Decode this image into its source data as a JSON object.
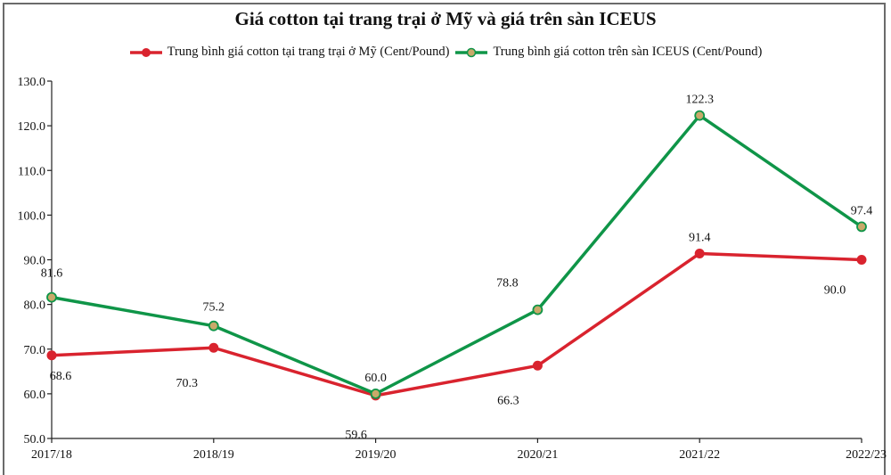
{
  "chart_data": {
    "type": "line",
    "title": "Giá cotton tại trang trại ở Mỹ và giá trên sàn ICEUS",
    "xlabel": "",
    "ylabel": "",
    "categories": [
      "2017/18",
      "2018/19",
      "2019/20",
      "2020/21",
      "2021/22",
      "2022/23"
    ],
    "series": [
      {
        "name": "Trung bình giá cotton tại trang trại ở Mỹ (Cent/Pound)",
        "color": "#d9232e",
        "marker_fill": "#d9232e",
        "values": [
          68.6,
          70.3,
          59.6,
          66.3,
          91.4,
          90.0
        ]
      },
      {
        "name": "Trung bình giá cotton trên sàn ICEUS (Cent/Pound)",
        "color": "#0f9548",
        "marker_fill": "#c9a96a",
        "values": [
          81.6,
          75.2,
          60.0,
          78.8,
          122.3,
          97.4
        ]
      }
    ],
    "y_ticks": [
      "50.0",
      "60.0",
      "70.0",
      "80.0",
      "90.0",
      "100.0",
      "110.0",
      "120.0",
      "130.0"
    ],
    "ylim": [
      50,
      130
    ],
    "grid": false,
    "legend_position": "top"
  }
}
